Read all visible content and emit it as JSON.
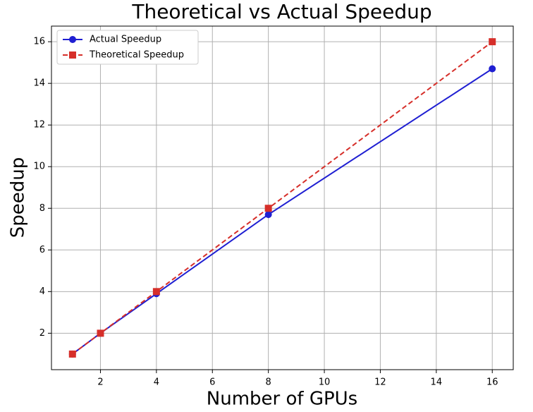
{
  "chart_data": {
    "type": "line",
    "title": "Theoretical vs Actual Speedup",
    "x_label": "Number of GPUs",
    "y_label": "Speedup",
    "x": [
      1,
      2,
      4,
      8,
      16
    ],
    "series": [
      {
        "name": "Actual Speedup",
        "color": "#1f1fd2",
        "values": [
          1,
          2,
          3.9,
          7.7,
          14.7
        ],
        "linestyle": "solid",
        "marker": "circle"
      },
      {
        "name": "Theoretical Speedup",
        "color": "#d62f2a",
        "values": [
          1,
          2,
          4,
          8,
          16
        ],
        "linestyle": "dashed",
        "marker": "square"
      }
    ],
    "xlim": [
      0.25,
      16.75
    ],
    "ylim": [
      0.25,
      16.75
    ],
    "xticks": [
      2,
      4,
      6,
      8,
      10,
      12,
      14,
      16
    ],
    "yticks": [
      2,
      4,
      6,
      8,
      10,
      12,
      14,
      16
    ],
    "grid": true,
    "legend": "upper left"
  }
}
